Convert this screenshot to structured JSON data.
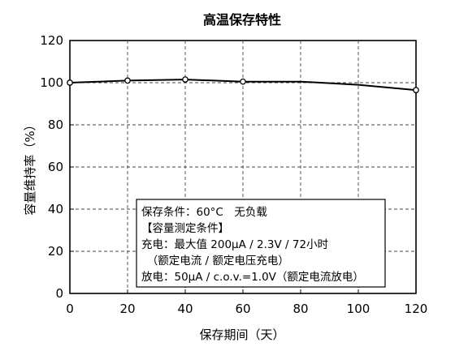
{
  "chart_data": {
    "type": "line",
    "title": "高温保存特性",
    "xlabel": "保存期间（天）",
    "ylabel": "容量维持率（%）",
    "xlim": [
      0,
      120
    ],
    "ylim": [
      0,
      120
    ],
    "x_ticks": [
      "0",
      "20",
      "40",
      "60",
      "80",
      "100",
      "120"
    ],
    "y_ticks": [
      "0",
      "20",
      "40",
      "60",
      "80",
      "100",
      "120"
    ],
    "grid": "dashed",
    "series": [
      {
        "x": [
          0,
          20,
          40,
          60,
          80,
          100,
          120
        ],
        "values": [
          100,
          101,
          101.5,
          100.5,
          100.5,
          99,
          96.5
        ],
        "markers": [
          true,
          true,
          true,
          true,
          false,
          false,
          true
        ]
      }
    ],
    "annotation": [
      "保存条件：60°C　无负载",
      "【容量测定条件】",
      "充电：最大值 200μA / 2.3V / 72小时",
      "　（额定电流 / 额定电压充电）",
      "放电：50μA / c.o.v.=1.0V（额定电流放电）"
    ]
  }
}
